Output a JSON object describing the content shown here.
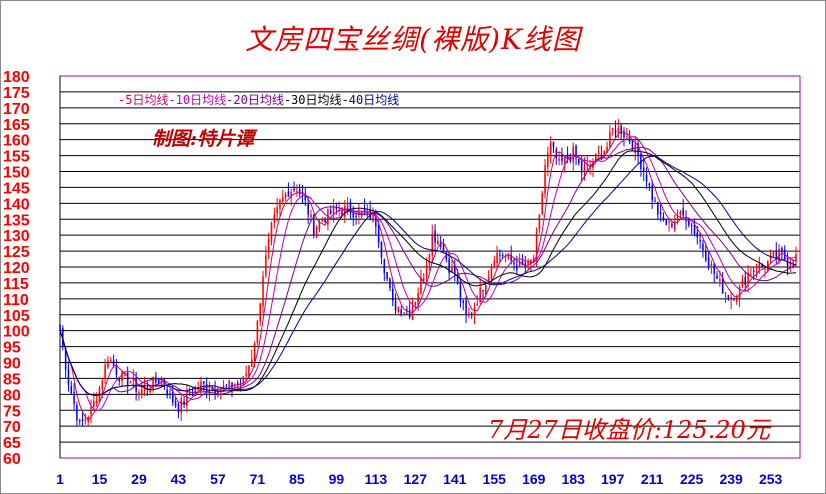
{
  "chart_data": {
    "type": "candlestick",
    "title": "文房四宝丝绸(裸版)K线图",
    "credit": "制图:特片谭",
    "close_note": "7月27日收盘价:125.20元",
    "ylim": [
      60,
      180
    ],
    "yticks": [
      60,
      65,
      70,
      75,
      80,
      85,
      90,
      95,
      100,
      105,
      110,
      115,
      120,
      125,
      130,
      135,
      140,
      145,
      150,
      155,
      160,
      165,
      170,
      175,
      180
    ],
    "xticks": [
      1,
      15,
      29,
      43,
      57,
      71,
      85,
      99,
      113,
      127,
      141,
      155,
      169,
      183,
      197,
      211,
      225,
      239,
      253
    ],
    "xlim": [
      1,
      262
    ],
    "grid": true,
    "legend": [
      {
        "label": "-5日均线",
        "color": "#d4006a"
      },
      {
        "label": "-10日均线",
        "color": "#c000c0"
      },
      {
        "label": "-20日均线",
        "color": "#7a0090"
      },
      {
        "label": "-30日均线",
        "color": "#000000"
      },
      {
        "label": "-40日均线",
        "color": "#000090"
      }
    ],
    "colors": {
      "up": "#ff0000",
      "down": "#0000ff",
      "grid": "#000000",
      "plot_border": "#b000b0"
    },
    "close_anchors": [
      [
        1,
        100
      ],
      [
        4,
        84
      ],
      [
        8,
        70
      ],
      [
        12,
        75
      ],
      [
        15,
        82
      ],
      [
        18,
        92
      ],
      [
        22,
        86
      ],
      [
        26,
        84
      ],
      [
        29,
        81
      ],
      [
        33,
        83
      ],
      [
        37,
        85
      ],
      [
        40,
        79
      ],
      [
        43,
        76
      ],
      [
        47,
        80
      ],
      [
        51,
        83
      ],
      [
        55,
        82
      ],
      [
        59,
        82
      ],
      [
        63,
        83
      ],
      [
        66,
        84
      ],
      [
        69,
        92
      ],
      [
        71,
        102
      ],
      [
        73,
        118
      ],
      [
        76,
        132
      ],
      [
        79,
        140
      ],
      [
        82,
        144
      ],
      [
        85,
        145
      ],
      [
        88,
        140
      ],
      [
        91,
        132
      ],
      [
        94,
        135
      ],
      [
        99,
        138
      ],
      [
        103,
        138
      ],
      [
        107,
        137
      ],
      [
        111,
        136
      ],
      [
        113,
        134
      ],
      [
        116,
        120
      ],
      [
        119,
        108
      ],
      [
        122,
        107
      ],
      [
        125,
        106
      ],
      [
        127,
        110
      ],
      [
        130,
        118
      ],
      [
        133,
        130
      ],
      [
        136,
        128
      ],
      [
        139,
        120
      ],
      [
        141,
        118
      ],
      [
        143,
        110
      ],
      [
        145,
        104
      ],
      [
        147,
        106
      ],
      [
        150,
        112
      ],
      [
        153,
        118
      ],
      [
        155,
        124
      ],
      [
        158,
        124
      ],
      [
        161,
        122
      ],
      [
        164,
        120
      ],
      [
        167,
        120
      ],
      [
        169,
        123
      ],
      [
        171,
        135
      ],
      [
        173,
        152
      ],
      [
        175,
        158
      ],
      [
        178,
        152
      ],
      [
        181,
        154
      ],
      [
        183,
        156
      ],
      [
        186,
        150
      ],
      [
        189,
        152
      ],
      [
        192,
        155
      ],
      [
        195,
        158
      ],
      [
        197,
        163
      ],
      [
        200,
        163
      ],
      [
        203,
        160
      ],
      [
        206,
        155
      ],
      [
        209,
        148
      ],
      [
        211,
        142
      ],
      [
        214,
        135
      ],
      [
        217,
        133
      ],
      [
        220,
        136
      ],
      [
        223,
        136
      ],
      [
        225,
        133
      ],
      [
        228,
        128
      ],
      [
        231,
        122
      ],
      [
        234,
        116
      ],
      [
        237,
        112
      ],
      [
        239,
        111
      ],
      [
        242,
        113
      ],
      [
        245,
        118
      ],
      [
        248,
        120
      ],
      [
        250,
        120
      ],
      [
        253,
        122
      ],
      [
        256,
        124
      ],
      [
        259,
        122
      ],
      [
        262,
        124
      ]
    ],
    "ma_periods": [
      5,
      10,
      20,
      30,
      40
    ]
  }
}
